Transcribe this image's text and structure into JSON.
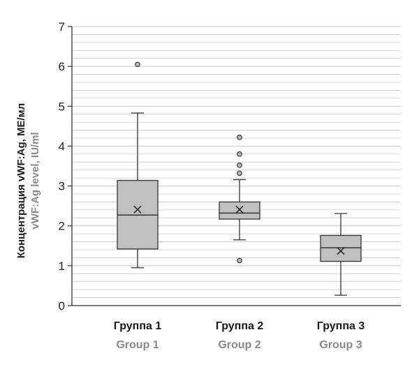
{
  "chart_data": {
    "type": "boxplot",
    "ylabel_ru": "Концентрация vWF:Ag, МЕ/мл",
    "ylabel_en": "vWF:Ag level, IU/ml",
    "ylim": [
      0,
      7
    ],
    "yticks": [
      "0",
      "1",
      "2",
      "3",
      "4",
      "5",
      "6",
      "7"
    ],
    "grid": "horizontal minor lines every 0.2",
    "colors": {
      "box": "#c0c0c0",
      "grid": "#c8c8c8",
      "axis": "#333333",
      "minor_label_en": "#8a8a8a"
    },
    "series": [
      {
        "label_ru": "Группа 1",
        "label_en": "Group 1",
        "whisker_low": 0.95,
        "q1": 1.42,
        "median": 2.27,
        "q3": 3.14,
        "whisker_high": 4.83,
        "mean": 2.41,
        "outliers": [
          6.05
        ]
      },
      {
        "label_ru": "Группа 2",
        "label_en": "Group 2",
        "whisker_low": 1.65,
        "q1": 2.17,
        "median": 2.32,
        "q3": 2.6,
        "whisker_high": 3.16,
        "mean": 2.41,
        "outliers": [
          1.13,
          3.32,
          3.52,
          3.8,
          4.22
        ]
      },
      {
        "label_ru": "Группа 3",
        "label_en": "Group 3",
        "whisker_low": 0.26,
        "q1": 1.11,
        "median": 1.45,
        "q3": 1.76,
        "whisker_high": 2.31,
        "mean": 1.37,
        "outliers": []
      }
    ]
  }
}
